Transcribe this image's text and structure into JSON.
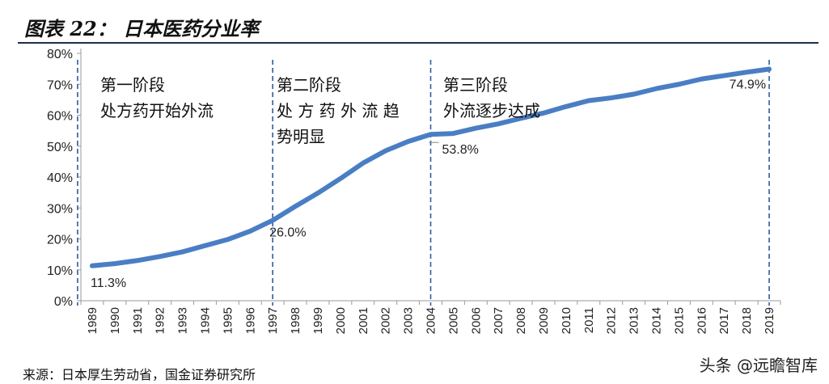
{
  "header": {
    "title": "图表 22： 日本医药分业率"
  },
  "footer": {
    "source": "来源：日本厚生劳动省，国金证券研究所",
    "watermark": "头条 @远瞻智库"
  },
  "colors": {
    "line": "#4a7ec4",
    "divider": "#2e5aa6",
    "title_rule": "#1e2d4f"
  },
  "chart_data": {
    "type": "line",
    "title": "",
    "xlabel": "",
    "ylabel": "",
    "ylim": [
      0,
      80
    ],
    "yticks": [
      "0%",
      "10%",
      "20%",
      "30%",
      "40%",
      "50%",
      "60%",
      "70%",
      "80%"
    ],
    "x": [
      "1989",
      "1990",
      "1991",
      "1992",
      "1993",
      "1994",
      "1995",
      "1996",
      "1997",
      "1998",
      "1999",
      "2000",
      "2001",
      "2002",
      "2003",
      "2004",
      "2005",
      "2006",
      "2007",
      "2008",
      "2009",
      "2010",
      "2011",
      "2012",
      "2013",
      "2014",
      "2015",
      "2016",
      "2017",
      "2018",
      "2019"
    ],
    "series": [
      {
        "values": [
          11.3,
          12.0,
          13.0,
          14.3,
          15.8,
          17.8,
          19.8,
          22.5,
          26.0,
          30.5,
          34.8,
          39.5,
          44.5,
          48.5,
          51.5,
          53.8,
          54.1,
          55.8,
          57.2,
          59.0,
          60.7,
          62.8,
          64.7,
          65.6,
          66.8,
          68.6,
          70.0,
          71.7,
          72.8,
          73.9,
          74.9
        ]
      }
    ],
    "data_labels": [
      {
        "x": "1989",
        "text": "11.3%"
      },
      {
        "x": "1997",
        "text": "26.0%"
      },
      {
        "x": "2004",
        "text": "53.8%"
      },
      {
        "x": "2019",
        "text": "74.9%"
      }
    ],
    "dividers": [
      "1997",
      "2004",
      "2019"
    ],
    "stage_annotations": [
      {
        "anchor": "1989",
        "lines": [
          "第一阶段",
          "处方药开始外流"
        ]
      },
      {
        "anchor": "1997",
        "lines": [
          "第二阶段",
          "处 方 药 外 流 趋",
          "势明显"
        ]
      },
      {
        "anchor": "2004",
        "lines": [
          "第三阶段",
          "外流逐步达成"
        ]
      }
    ]
  }
}
